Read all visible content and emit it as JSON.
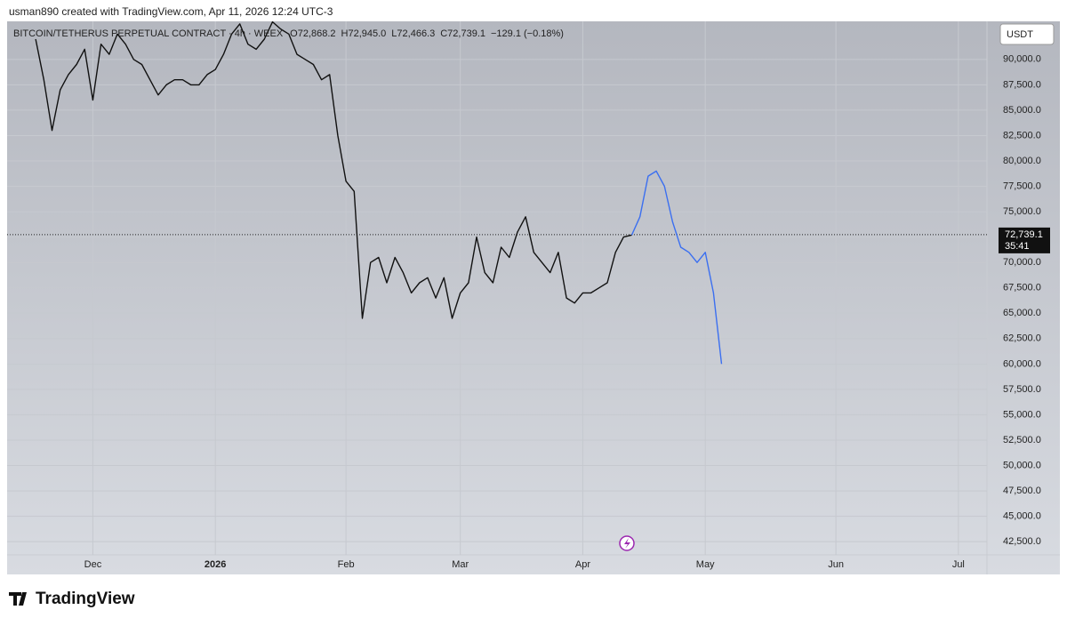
{
  "header": {
    "text": "usman890 created with TradingView.com, Apr 11, 2026 12:24 UTC-3"
  },
  "footer": {
    "brand": "TradingView"
  },
  "chart_data": {
    "type": "line",
    "title": "BITCOIN/TETHERUS PERPETUAL CONTRACT · 4h · WEEX",
    "ohlc": [
      "O72,868.2",
      "H72,945.0",
      "L72,466.3",
      "C72,739.1",
      "−129.1 (−0.18%)"
    ],
    "currency": "USDT",
    "last_price": {
      "value": 72739.1,
      "label": "72,739.1"
    },
    "countdown": "35:41",
    "categories": [
      null,
      null,
      null,
      null,
      null,
      null,
      null,
      null,
      null,
      null,
      "Dec",
      null,
      null,
      null,
      null,
      null,
      null,
      null,
      null,
      null,
      null,
      null,
      null,
      null,
      null,
      "2026",
      null,
      null,
      null,
      null,
      null,
      null,
      null,
      null,
      null,
      null,
      null,
      null,
      null,
      null,
      null,
      "Feb",
      null,
      null,
      null,
      null,
      null,
      null,
      null,
      null,
      null,
      null,
      null,
      null,
      null,
      "Mar",
      null,
      null,
      null,
      null,
      null,
      null,
      null,
      null,
      null,
      null,
      null,
      null,
      null,
      null,
      "Apr",
      null,
      null,
      null,
      null,
      null,
      null,
      null,
      null,
      null,
      null,
      null,
      null,
      null,
      null,
      "May",
      null,
      null,
      null,
      null,
      null,
      null,
      null,
      null,
      null,
      null,
      null,
      null,
      null,
      null,
      null,
      "Jun",
      null,
      null,
      null,
      null,
      null,
      null,
      null,
      null,
      null,
      null,
      null,
      null,
      null,
      null,
      "Jul",
      null,
      null,
      null
    ],
    "series": [
      {
        "color": "#111111",
        "values": [
          null,
          null,
          null,
          92000,
          88000,
          83000,
          87000,
          88500,
          89500,
          91000,
          86000,
          91500,
          90500,
          92500,
          91500,
          90000,
          89500,
          88000,
          86500,
          87500,
          88000,
          88000,
          87500,
          87500,
          88500,
          89000,
          90500,
          92500,
          93500,
          91500,
          91000,
          92000,
          93700,
          93000,
          92500,
          90500,
          90000,
          89500,
          88000,
          88500,
          82500,
          78000,
          77000,
          64500,
          70000,
          70500,
          68000,
          70500,
          69000,
          67000,
          68000,
          68500,
          66500,
          68500,
          64500,
          67000,
          68000,
          72500,
          69000,
          68000,
          71500,
          70500,
          73000,
          74500,
          71000,
          70000,
          69000,
          71000,
          66500,
          66000,
          67000,
          67000,
          67500,
          68000,
          71000,
          72500,
          72700,
          null,
          null,
          null,
          null,
          null,
          null,
          null,
          null,
          null,
          null,
          null,
          null,
          null,
          null,
          null,
          null,
          null,
          null,
          null,
          null,
          null,
          null,
          null,
          null,
          null,
          null,
          null,
          null,
          null,
          null,
          null,
          null,
          null,
          null,
          null,
          null,
          null,
          null,
          null,
          null,
          null,
          null,
          null
        ]
      },
      {
        "color": "#3b6ff0",
        "values": [
          null,
          null,
          null,
          null,
          null,
          null,
          null,
          null,
          null,
          null,
          null,
          null,
          null,
          null,
          null,
          null,
          null,
          null,
          null,
          null,
          null,
          null,
          null,
          null,
          null,
          null,
          null,
          null,
          null,
          null,
          null,
          null,
          null,
          null,
          null,
          null,
          null,
          null,
          null,
          null,
          null,
          null,
          null,
          null,
          null,
          null,
          null,
          null,
          null,
          null,
          null,
          null,
          null,
          null,
          null,
          null,
          null,
          null,
          null,
          null,
          null,
          null,
          null,
          null,
          null,
          null,
          null,
          null,
          null,
          null,
          null,
          null,
          null,
          null,
          null,
          null,
          72700,
          74500,
          78500,
          79000,
          77500,
          74000,
          71500,
          71000,
          70000,
          71000,
          67000,
          60000,
          null,
          null,
          null,
          null,
          null,
          null,
          null,
          null,
          null,
          null,
          null,
          null,
          null,
          null,
          null,
          null,
          null,
          null,
          null,
          null,
          null,
          null,
          null,
          null,
          null,
          null,
          null,
          null,
          null,
          null,
          null,
          null
        ]
      }
    ],
    "ylim": [
      41200,
      93750
    ],
    "yticks": [
      {
        "value": 42500,
        "label": "42,500.0"
      },
      {
        "value": 45000,
        "label": "45,000.0"
      },
      {
        "value": 47500,
        "label": "47,500.0"
      },
      {
        "value": 50000,
        "label": "50,000.0"
      },
      {
        "value": 52500,
        "label": "52,500.0"
      },
      {
        "value": 55000,
        "label": "55,000.0"
      },
      {
        "value": 57500,
        "label": "57,500.0"
      },
      {
        "value": 60000,
        "label": "60,000.0"
      },
      {
        "value": 62500,
        "label": "62,500.0"
      },
      {
        "value": 65000,
        "label": "65,000.0"
      },
      {
        "value": 67500,
        "label": "67,500.0"
      },
      {
        "value": 70000,
        "label": "70,000.0"
      },
      {
        "value": 72500,
        "label": "72,500.0"
      },
      {
        "value": 75000,
        "label": "75,000.0"
      },
      {
        "value": 77500,
        "label": "77,500.0"
      },
      {
        "value": 80000,
        "label": "80,000.0"
      },
      {
        "value": 82500,
        "label": "82,500.0"
      },
      {
        "value": 85000,
        "label": "85,000.0"
      },
      {
        "value": 87500,
        "label": "87,500.0"
      },
      {
        "value": 90000,
        "label": "90,000.0"
      }
    ],
    "grid": true
  }
}
